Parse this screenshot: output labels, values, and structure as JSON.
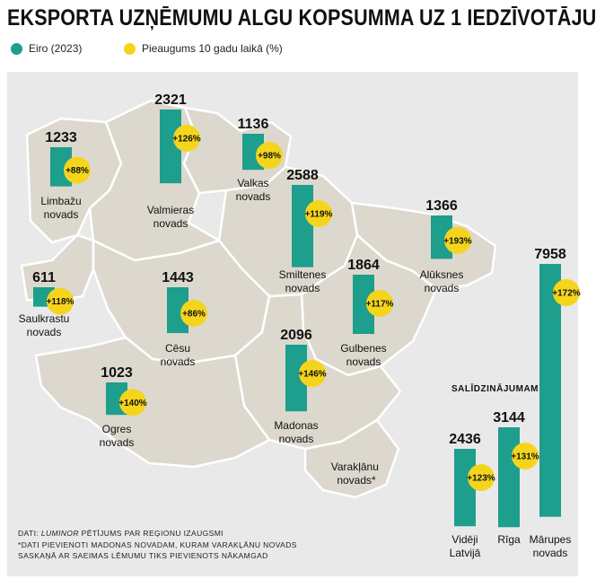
{
  "title": "EKSPORTA UZŅĒMUMU ALGU KOPSUMMA UZ 1 IEDZĪVOTĀJU",
  "legend": [
    {
      "label": "Eiro (2023)",
      "color": "#1e9e8c"
    },
    {
      "label": "Pieaugums 10 gadu laikā (%)",
      "color": "#f4d51c"
    }
  ],
  "colors": {
    "bar": "#1e9e8c",
    "growth": "#f4d51c",
    "map_land": "#ddd8ce",
    "map_border": "#ffffff",
    "panel": "#e9e9e9"
  },
  "comparison_header": "SALĪDZINĀJUMAM",
  "notes": {
    "line1_prefix": "DATI: ",
    "line1_source": "LUMINOR",
    "line1_suffix": " PĒTĪJUMS PAR REĢIONU IZAUGSMI",
    "line2": "*DATI PIEVIENOTI MADONAS NOVADAM, KURAM VARAKĻĀNU NOVADS",
    "line3": "SASKAŅĀ AR SAEIMAS LĒMUMU TIKS PIEVIENOTS NĀKAMGAD"
  },
  "extra_labels": [
    {
      "lines": [
        "Varakļānu",
        "novads*"
      ]
    }
  ],
  "chart_data": {
    "type": "bar",
    "title": "EKSPORTA UZŅĒMUMU ALGU KOPSUMMA UZ 1 IEDZĪVOTĀJU",
    "series": [
      {
        "name": "Eiro (2023)",
        "values": [
          1233,
          2321,
          1136,
          2588,
          1366,
          611,
          1443,
          1864,
          2096,
          1023,
          2436,
          3144,
          7958
        ]
      },
      {
        "name": "Pieaugums 10 gadu laikā (%)",
        "values": [
          88,
          126,
          98,
          119,
          193,
          118,
          86,
          117,
          146,
          140,
          123,
          131,
          172
        ]
      }
    ],
    "items": [
      {
        "lines": [
          "Limbažu",
          "novads"
        ],
        "value": 1233,
        "growth": "+88%",
        "group": "map"
      },
      {
        "lines": [
          "Valmieras",
          "novads"
        ],
        "value": 2321,
        "growth": "+126%",
        "group": "map"
      },
      {
        "lines": [
          "Valkas",
          "novads"
        ],
        "value": 1136,
        "growth": "+98%",
        "group": "map"
      },
      {
        "lines": [
          "Smiltenes",
          "novads"
        ],
        "value": 2588,
        "growth": "+119%",
        "group": "map"
      },
      {
        "lines": [
          "Alūksnes",
          "novads"
        ],
        "value": 1366,
        "growth": "+193%",
        "group": "map"
      },
      {
        "lines": [
          "Saulkrastu",
          "novads"
        ],
        "value": 611,
        "growth": "+118%",
        "group": "map"
      },
      {
        "lines": [
          "Cēsu",
          "novads"
        ],
        "value": 1443,
        "growth": "+86%",
        "group": "map"
      },
      {
        "lines": [
          "Gulbenes",
          "novads"
        ],
        "value": 1864,
        "growth": "+117%",
        "group": "map"
      },
      {
        "lines": [
          "Madonas",
          "novads"
        ],
        "value": 2096,
        "growth": "+146%",
        "group": "map"
      },
      {
        "lines": [
          "Ogres",
          "novads"
        ],
        "value": 1023,
        "growth": "+140%",
        "group": "map"
      },
      {
        "lines": [
          "Vidēji",
          "Latvijā"
        ],
        "value": 2436,
        "growth": "+123%",
        "group": "comparison"
      },
      {
        "lines": [
          "Rīga"
        ],
        "value": 3144,
        "growth": "+131%",
        "group": "comparison"
      },
      {
        "lines": [
          "Mārupes",
          "novads"
        ],
        "value": 7958,
        "growth": "+172%",
        "group": "comparison"
      }
    ]
  }
}
